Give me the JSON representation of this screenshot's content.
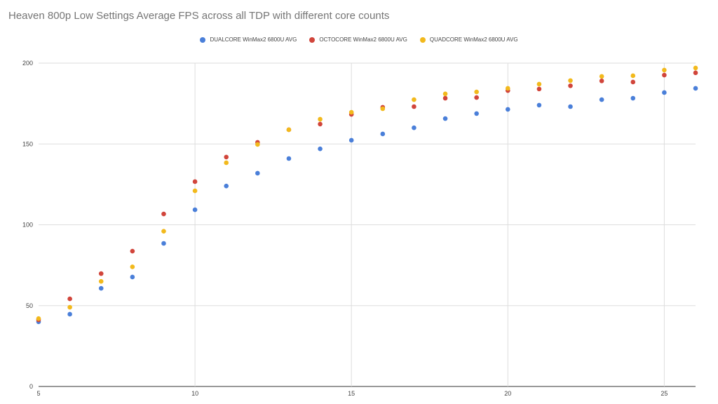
{
  "chart_data": {
    "type": "scatter",
    "title": "Heaven 800p Low Settings Average FPS across all TDP with different core counts",
    "xlabel": "",
    "ylabel": "",
    "xlim": [
      5,
      26
    ],
    "ylim": [
      0,
      200
    ],
    "xticks": [
      5,
      10,
      15,
      20,
      25
    ],
    "yticks": [
      0,
      50,
      100,
      150,
      200
    ],
    "grid": true,
    "legend_position": "top",
    "x": [
      5,
      6,
      7,
      8,
      9,
      10,
      11,
      12,
      13,
      14,
      15,
      16,
      17,
      18,
      19,
      20,
      21,
      22,
      23,
      24,
      25,
      26
    ],
    "series": [
      {
        "name": "DUALCORE WinMax2 6800U AVG",
        "color": "#4a7fd9",
        "values": [
          40,
          44.7,
          60.7,
          67.7,
          88.5,
          109.3,
          124,
          131.9,
          141,
          147,
          152.3,
          156.2,
          160,
          165.7,
          168.8,
          171.4,
          174,
          173.1,
          177.4,
          178.3,
          181.8,
          184.4
        ]
      },
      {
        "name": "OCTOCORE WinMax2 6800U AVG",
        "color": "#d1453b",
        "values": [
          41.2,
          54.2,
          69.8,
          83.7,
          106.7,
          126.7,
          141.9,
          151,
          158.8,
          162.3,
          168.3,
          172.7,
          173.1,
          178.3,
          178.7,
          183,
          184,
          186,
          189,
          188.3,
          192.6,
          194
        ]
      },
      {
        "name": "QUADCORE WinMax2 6800U AVG",
        "color": "#f2b91c",
        "values": [
          42,
          49,
          65,
          74,
          96,
          121,
          138.4,
          149.7,
          158.8,
          165.3,
          169.6,
          171.8,
          177.4,
          181,
          182.2,
          184.4,
          187,
          189.2,
          191.8,
          192.2,
          195.7,
          197
        ]
      }
    ]
  }
}
